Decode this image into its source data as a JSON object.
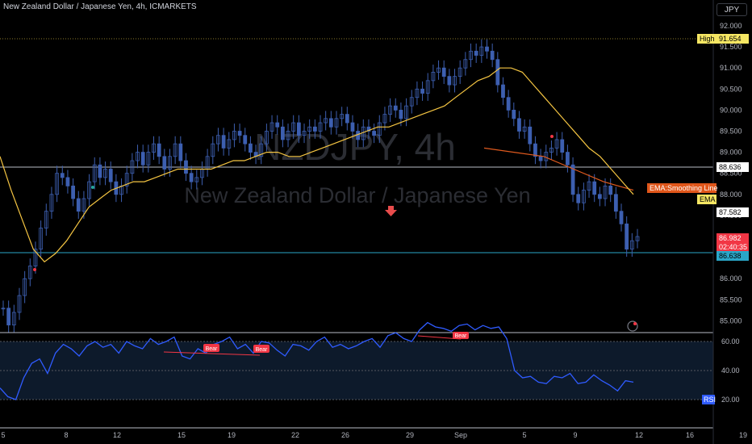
{
  "header": {
    "symbol_title": "New Zealand Dollar / Japanese Yen, 4h, ICMARKETS",
    "currency_badge": "JPY"
  },
  "watermark": {
    "ticker": "NZDJPY, 4h",
    "name": "New Zealand Dollar / Japanese Yen"
  },
  "colors": {
    "background": "#000000",
    "candle": "#3d5fb0",
    "ema_fast": "#f5c542",
    "ema_slow": "#e05a1e",
    "rsi_line": "#2f5bff",
    "bear_label": "#f23645",
    "high_label": "#f5e663",
    "current_price": "#f23645",
    "hline_price": "#5bc0de",
    "grid_level": "#ffffff"
  },
  "price_axis": {
    "ticks": [
      "92.000",
      "91.500",
      "91.000",
      "90.500",
      "90.000",
      "89.500",
      "89.000",
      "88.500",
      "88.000",
      "87.500",
      "87.000",
      "86.500",
      "86.000",
      "85.500",
      "85.000"
    ],
    "labels": {
      "high_tag": "High",
      "high_value": "91.654",
      "level_1": "88.636",
      "ema_smoothing": "EMA:Smoothing Line",
      "ema": "EMA",
      "ema_value": "87.582",
      "current_price": "86.982",
      "countdown": "02:40:35",
      "level_2": "86.638"
    }
  },
  "rsi_axis": {
    "ticks": [
      "60.00",
      "40.00",
      "20.00"
    ],
    "tag": "RSI"
  },
  "time_axis": {
    "ticks": [
      "5",
      "8",
      "12",
      "15",
      "19",
      "22",
      "26",
      "29",
      "Sep",
      "5",
      "9",
      "12",
      "16",
      "19"
    ]
  },
  "annotations": {
    "bear_labels": [
      "Bear",
      "Bear",
      "Bear"
    ]
  },
  "chart_data": {
    "type": "candlestick",
    "symbol": "NZDJPY",
    "timeframe": "4h",
    "ylim": [
      84.75,
      92.3
    ],
    "rsi_ylim": [
      15,
      75
    ],
    "high": 91.654,
    "current_price": 86.982,
    "horizontal_levels": [
      88.636,
      86.638
    ],
    "closes": [
      85.3,
      84.9,
      85.2,
      85.6,
      86.0,
      86.3,
      86.7,
      87.2,
      87.6,
      88.0,
      88.5,
      88.4,
      88.2,
      87.9,
      87.6,
      87.9,
      88.3,
      88.7,
      88.4,
      88.6,
      88.3,
      88.0,
      88.2,
      88.5,
      88.8,
      89.0,
      88.7,
      89.0,
      89.2,
      88.9,
      88.6,
      88.9,
      89.2,
      88.8,
      88.5,
      88.3,
      88.4,
      88.6,
      88.9,
      89.2,
      89.4,
      89.1,
      89.3,
      89.5,
      89.4,
      89.2,
      89.0,
      88.9,
      89.2,
      89.5,
      89.7,
      89.6,
      89.3,
      89.5,
      89.7,
      89.4,
      89.5,
      89.6,
      89.5,
      89.7,
      89.8,
      89.6,
      89.8,
      89.9,
      89.7,
      89.5,
      89.3,
      89.6,
      89.5,
      89.4,
      89.7,
      89.9,
      90.1,
      90.0,
      89.8,
      90.1,
      90.3,
      90.5,
      90.4,
      90.7,
      90.9,
      91.0,
      90.8,
      90.6,
      90.8,
      91.0,
      91.2,
      91.4,
      91.3,
      91.5,
      91.4,
      91.2,
      90.6,
      90.3,
      90.0,
      89.8,
      89.5,
      89.6,
      89.2,
      88.9,
      88.8,
      89.0,
      89.1,
      89.3,
      89.0,
      88.7,
      88.0,
      87.8,
      88.1,
      88.3,
      88.0,
      87.9,
      88.2,
      88.0,
      87.6,
      87.3,
      86.7,
      86.9,
      87.0
    ],
    "ema_fast": [
      88.9,
      88.1,
      87.4,
      86.7,
      86.4,
      86.6,
      86.9,
      87.3,
      87.7,
      87.9,
      88.1,
      88.2,
      88.3,
      88.3,
      88.4,
      88.5,
      88.6,
      88.6,
      88.6,
      88.6,
      88.7,
      88.8,
      88.8,
      88.9,
      89.0,
      89.0,
      88.9,
      88.9,
      89.0,
      89.1,
      89.2,
      89.3,
      89.4,
      89.5,
      89.6,
      89.6,
      89.7,
      89.8,
      89.9,
      90.0,
      90.1,
      90.3,
      90.5,
      90.7,
      90.8,
      91.0,
      91.0,
      90.9,
      90.6,
      90.3,
      90.0,
      89.7,
      89.4,
      89.1,
      88.9,
      88.6,
      88.3,
      88.0
    ],
    "ema_slow": [
      89.1,
      89.0,
      88.9,
      88.6,
      88.3,
      88.1
    ],
    "rsi": [
      28,
      22,
      20,
      35,
      45,
      48,
      38,
      52,
      58,
      55,
      50,
      57,
      60,
      56,
      58,
      52,
      60,
      57,
      55,
      62,
      58,
      60,
      63,
      50,
      48,
      55,
      52,
      58,
      60,
      63,
      55,
      58,
      52,
      60,
      59,
      54,
      50,
      58,
      57,
      54,
      60,
      63,
      56,
      58,
      55,
      57,
      60,
      62,
      56,
      64,
      66,
      62,
      60,
      68,
      73,
      70,
      69,
      67,
      71,
      72,
      68,
      71,
      69,
      70,
      62,
      40,
      35,
      36,
      32,
      31,
      36,
      35,
      38,
      31,
      32,
      37,
      33,
      30,
      26,
      33,
      32
    ]
  }
}
